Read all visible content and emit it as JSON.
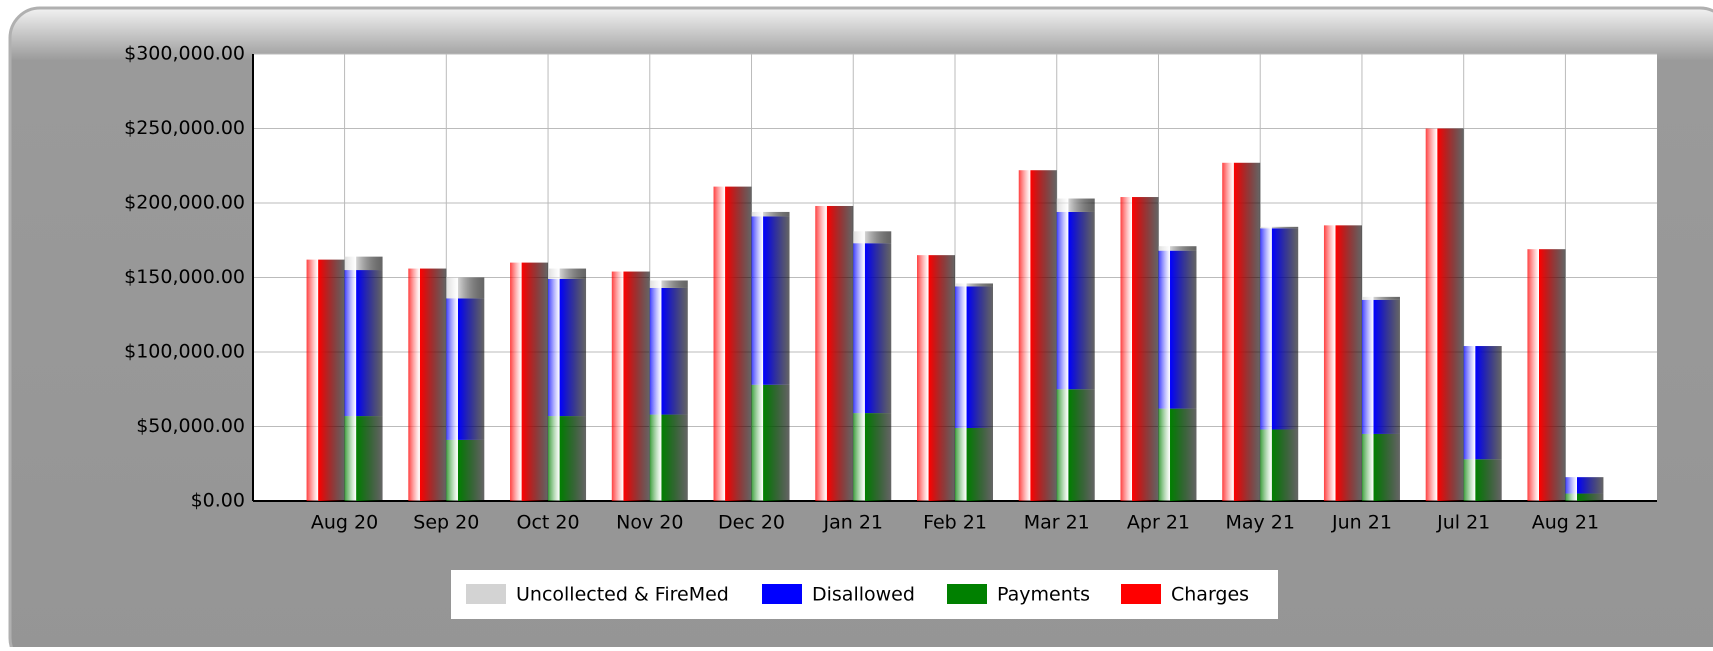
{
  "chart_data": {
    "type": "bar",
    "categories": [
      "Aug 20",
      "Sep 20",
      "Oct 20",
      "Nov 20",
      "Dec 20",
      "Jan 21",
      "Feb 21",
      "Mar 21",
      "Apr 21",
      "May 21",
      "Jun 21",
      "Jul 21",
      "Aug 21"
    ],
    "series": [
      {
        "name": "Uncollected & FireMed",
        "color": "#d3d3d3",
        "stack": "b",
        "values": [
          9000,
          14000,
          7000,
          5000,
          3000,
          8000,
          2000,
          9000,
          3000,
          1000,
          2000,
          0,
          0
        ]
      },
      {
        "name": "Disallowed",
        "color": "#0000ff",
        "stack": "b",
        "values": [
          98000,
          95000,
          92000,
          85000,
          113000,
          114000,
          95000,
          119000,
          106000,
          135000,
          90000,
          76000,
          11000
        ]
      },
      {
        "name": "Payments",
        "color": "#008000",
        "stack": "b",
        "values": [
          57000,
          41000,
          57000,
          58000,
          78000,
          59000,
          49000,
          75000,
          62000,
          48000,
          45000,
          28000,
          5000
        ]
      },
      {
        "name": "Charges",
        "color": "#ff0000",
        "stack": "a",
        "values": [
          162000,
          156000,
          160000,
          154000,
          211000,
          198000,
          165000,
          222000,
          204000,
          227000,
          185000,
          250000,
          169000
        ]
      }
    ],
    "ylim": [
      0,
      300000
    ],
    "yticks": [
      {
        "value": 0,
        "label": "$0.00"
      },
      {
        "value": 50000,
        "label": "$50,000.00"
      },
      {
        "value": 100000,
        "label": "$100,000.00"
      },
      {
        "value": 150000,
        "label": "$150,000.00"
      },
      {
        "value": 200000,
        "label": "$200,000.00"
      },
      {
        "value": 250000,
        "label": "$250,000.00"
      },
      {
        "value": 300000,
        "label": "$300,000.00"
      }
    ],
    "grid": true,
    "legend": "bottom"
  }
}
